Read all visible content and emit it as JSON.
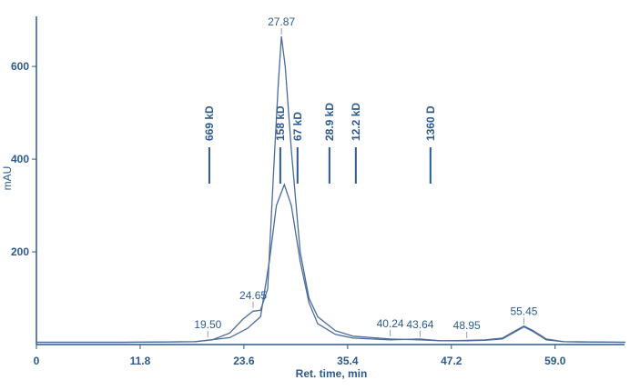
{
  "chart_data": {
    "type": "line",
    "x_label": "Ret. time, min",
    "y_label": "mAU",
    "xlim": [
      0,
      67
    ],
    "ylim": [
      0,
      710
    ],
    "xticks": [
      0,
      11.8,
      23.6,
      35.4,
      47.2,
      {
        "value": 59,
        "label": "59.0"
      }
    ],
    "yticks": [
      200,
      400,
      600
    ],
    "series": [
      {
        "color": "#4a6c9c",
        "x": [
          0,
          10,
          18,
          20,
          22,
          23.5,
          24.65,
          25.5,
          26.3,
          27,
          27.5,
          27.87,
          28.3,
          29,
          30,
          31,
          32,
          34,
          36,
          40.24,
          43.64,
          46,
          48.95,
          51,
          53,
          54.5,
          55.45,
          56.5,
          58,
          60,
          67
        ],
        "values": [
          5,
          5,
          6,
          10,
          25,
          55,
          72,
          74,
          120,
          380,
          560,
          665,
          600,
          420,
          200,
          100,
          60,
          30,
          18,
          12,
          10,
          8,
          9,
          10,
          14,
          30,
          40,
          30,
          12,
          6,
          5
        ]
      },
      {
        "color": "#4a6c9c",
        "x": [
          0,
          10,
          18,
          22,
          24,
          25.5,
          26.5,
          27.3,
          28.2,
          29,
          30,
          31,
          32,
          34,
          36,
          40.24,
          43.64,
          46,
          48.95,
          51,
          53,
          54.5,
          55.45,
          56.5,
          58,
          60,
          67
        ],
        "values": [
          5,
          5,
          6,
          15,
          35,
          60,
          180,
          300,
          345,
          300,
          180,
          90,
          45,
          22,
          14,
          10,
          12,
          8,
          8,
          9,
          12,
          28,
          38,
          28,
          10,
          6,
          5
        ]
      }
    ],
    "peak_labels": [
      {
        "x": 19.5,
        "y": 12,
        "label": "19.50"
      },
      {
        "x": 24.65,
        "y": 75,
        "label": "24.65"
      },
      {
        "x": 27.87,
        "y": 665,
        "label": "27.87"
      },
      {
        "x": 40.24,
        "y": 14,
        "label": "40.24"
      },
      {
        "x": 43.64,
        "y": 12,
        "label": "43.64"
      },
      {
        "x": 48.95,
        "y": 10,
        "label": "48.95"
      },
      {
        "x": 55.45,
        "y": 40,
        "label": "55.45"
      }
    ],
    "markers": [
      {
        "x": 19.67,
        "label": "669 kD"
      },
      {
        "x": 27.74,
        "label": "158 kD"
      },
      {
        "x": 29.7,
        "label": "67 kD"
      },
      {
        "x": 33.33,
        "label": "28.9 kD"
      },
      {
        "x": 36.33,
        "label": "12.2 kD"
      },
      {
        "x": 44.82,
        "label": "1360 D"
      }
    ]
  }
}
